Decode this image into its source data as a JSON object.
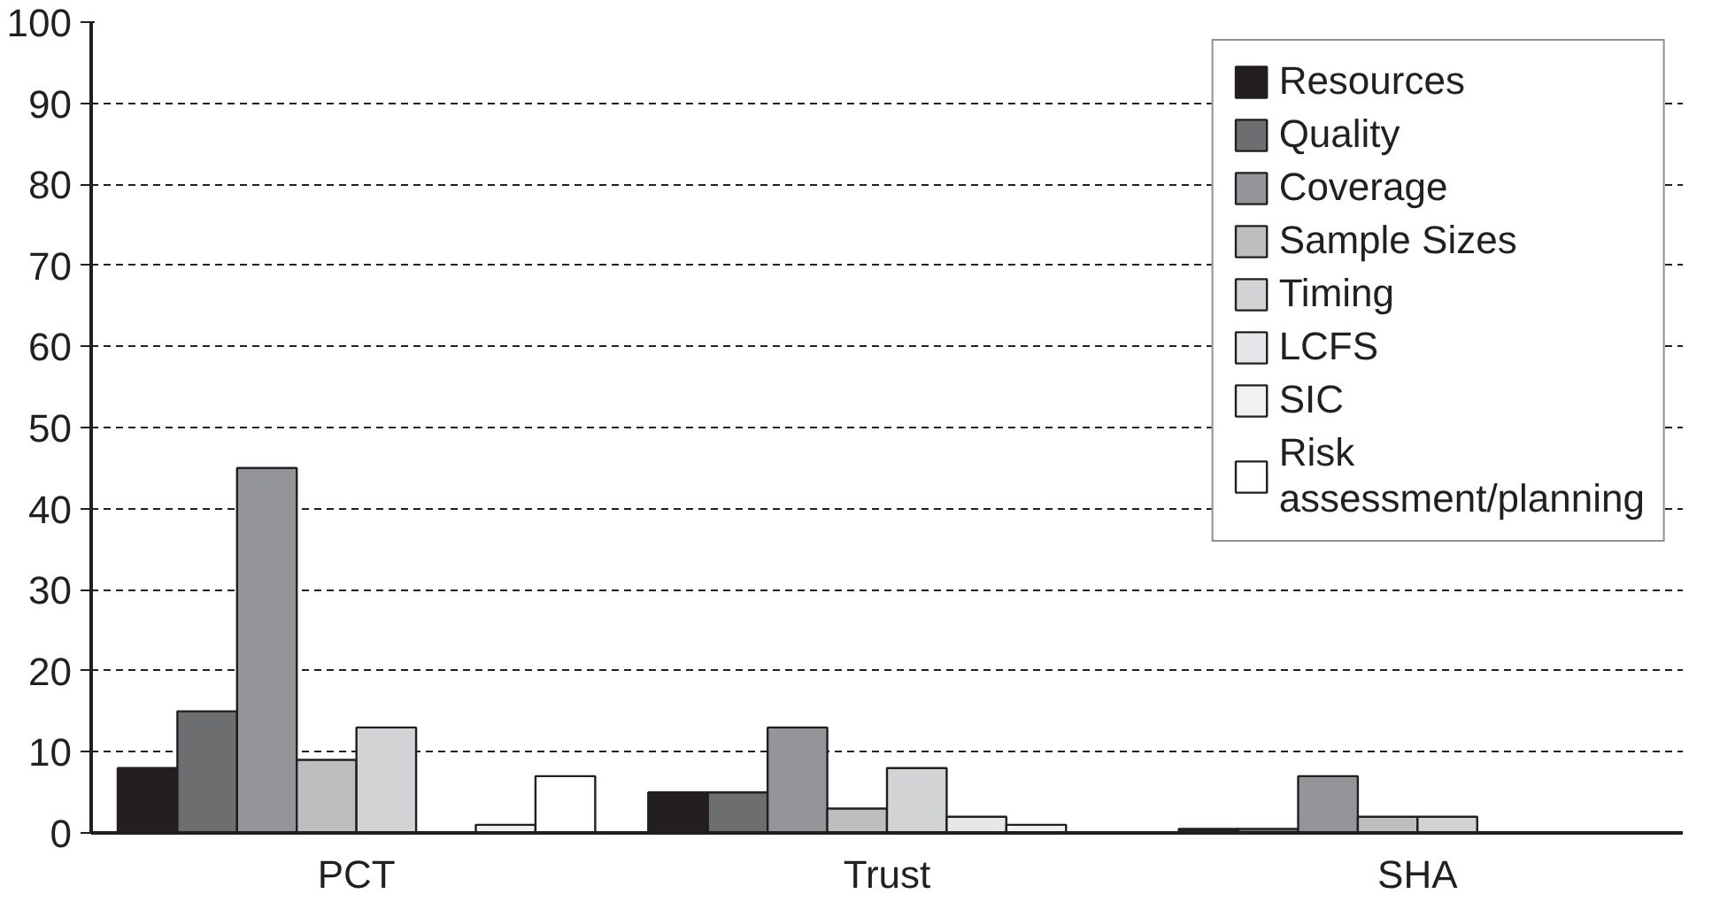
{
  "chart_data": {
    "type": "bar",
    "categories": [
      "PCT",
      "Trust",
      "SHA"
    ],
    "series": [
      {
        "name": "Resources",
        "color": "#231f20",
        "values": [
          8,
          5,
          0.5
        ]
      },
      {
        "name": "Quality",
        "color": "#6d6e70",
        "values": [
          15,
          5,
          0.5
        ]
      },
      {
        "name": "Coverage",
        "color": "#939598",
        "values": [
          45,
          13,
          7
        ]
      },
      {
        "name": "Sample Sizes",
        "color": "#bcbec0",
        "values": [
          9,
          3,
          2
        ]
      },
      {
        "name": "Timing",
        "color": "#d1d3d4",
        "values": [
          13,
          8,
          2
        ]
      },
      {
        "name": "LCFS",
        "color": "#e6e7e8",
        "values": [
          null,
          2,
          null
        ]
      },
      {
        "name": "SIC",
        "color": "#f1f1f2",
        "values": [
          1,
          1,
          null
        ]
      },
      {
        "name": "Risk\nassessment/planning",
        "color": "#ffffff",
        "values": [
          7,
          null,
          null
        ]
      }
    ],
    "ylim": [
      0,
      100
    ],
    "yticks": [
      0,
      10,
      20,
      30,
      40,
      50,
      60,
      70,
      80,
      90,
      100
    ],
    "grid": "y",
    "legend": "top right"
  }
}
